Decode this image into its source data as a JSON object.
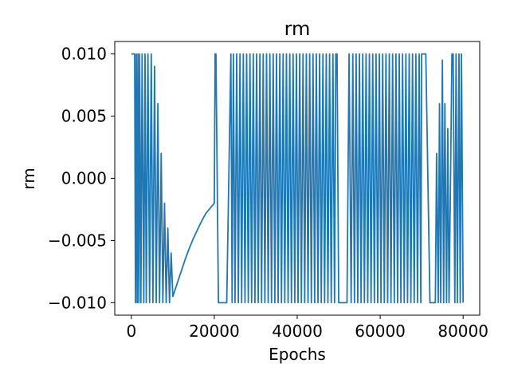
{
  "chart_data": {
    "type": "line",
    "title": "rm",
    "xlabel": "Epochs",
    "ylabel": "rm",
    "xlim": [
      -4000,
      84000
    ],
    "ylim": [
      -0.011,
      0.011
    ],
    "grid": false,
    "xticks": [
      {
        "value": 0,
        "label": "0"
      },
      {
        "value": 20000,
        "label": "20000"
      },
      {
        "value": 40000,
        "label": "40000"
      },
      {
        "value": 60000,
        "label": "60000"
      },
      {
        "value": 80000,
        "label": "80000"
      }
    ],
    "yticks": [
      {
        "value": 0.01,
        "label": "0.010"
      },
      {
        "value": 0.005,
        "label": "0.005"
      },
      {
        "value": 0.0,
        "label": "0.000"
      },
      {
        "value": -0.005,
        "label": "−0.005"
      },
      {
        "value": -0.01,
        "label": "−0.010"
      }
    ],
    "series": [
      {
        "color": "#1f77b4",
        "x": [
          0,
          800,
          1000,
          1200,
          1400,
          1600,
          1800,
          2000,
          2300,
          2600,
          3000,
          3300,
          3600,
          4000,
          4400,
          4800,
          5200,
          5600,
          6000,
          6400,
          6800,
          7200,
          7600,
          8000,
          8400,
          8800,
          9200,
          9600,
          10000,
          10500,
          11000,
          12000,
          13000,
          14000,
          15000,
          16000,
          17000,
          18000,
          19000,
          20000,
          20200,
          20400,
          21000,
          22000,
          23000,
          24000,
          24300,
          24600,
          25000,
          25400,
          25800,
          26200,
          26600,
          27000,
          27400,
          27800,
          28200,
          28600,
          29000,
          29400,
          29800,
          30200,
          30600,
          31000,
          31400,
          31800,
          32200,
          32600,
          33000,
          33400,
          33800,
          34200,
          34600,
          35000,
          35400,
          35800,
          36200,
          36600,
          37000,
          37400,
          37800,
          38200,
          38600,
          39000,
          39400,
          39800,
          40200,
          40600,
          41000,
          41400,
          41800,
          42200,
          42600,
          43000,
          43400,
          43800,
          44200,
          44600,
          45000,
          45400,
          45800,
          46200,
          46600,
          47000,
          47400,
          47800,
          48200,
          48600,
          49000,
          49300,
          49600,
          50000,
          51000,
          52000,
          52500,
          53000,
          53400,
          53800,
          54200,
          54600,
          55000,
          55400,
          55800,
          56200,
          56600,
          57000,
          57400,
          57800,
          58200,
          58600,
          59000,
          59400,
          59800,
          60200,
          60600,
          61000,
          61400,
          61800,
          62200,
          62600,
          63000,
          63400,
          63800,
          64200,
          64600,
          65000,
          65400,
          65800,
          66200,
          66600,
          67000,
          67400,
          67800,
          68200,
          68600,
          69000,
          69400,
          69800,
          70000,
          71000,
          72000,
          73000,
          73300,
          73600,
          74000,
          74300,
          74600,
          75000,
          75300,
          75600,
          76000,
          76300,
          76600,
          77000,
          77300,
          77600,
          78000,
          78300,
          78600,
          79000,
          79300,
          79600,
          80000
        ],
        "y": [
          0.01,
          0.01,
          -0.01,
          0.01,
          -0.01,
          0.01,
          -0.01,
          0.01,
          -0.01,
          0.01,
          -0.01,
          0.01,
          -0.01,
          0.01,
          -0.01,
          0.01,
          -0.01,
          0.009,
          -0.01,
          0.006,
          -0.01,
          0.002,
          -0.01,
          -0.002,
          -0.01,
          -0.004,
          -0.01,
          -0.006,
          -0.0095,
          -0.009,
          -0.0085,
          -0.0075,
          -0.0065,
          -0.0056,
          -0.0048,
          -0.0041,
          -0.0034,
          -0.0028,
          -0.0024,
          -0.002,
          0.01,
          0.01,
          -0.01,
          -0.01,
          -0.01,
          0.01,
          -0.01,
          0.01,
          -0.01,
          0.01,
          -0.01,
          0.01,
          -0.01,
          0.01,
          -0.01,
          0.01,
          -0.01,
          0.01,
          -0.01,
          0.01,
          -0.01,
          0.01,
          -0.01,
          0.01,
          -0.01,
          0.01,
          -0.01,
          0.01,
          -0.01,
          0.01,
          -0.01,
          0.01,
          -0.01,
          0.01,
          -0.01,
          0.01,
          -0.01,
          0.01,
          -0.01,
          0.01,
          -0.01,
          0.01,
          -0.01,
          0.01,
          -0.01,
          0.01,
          -0.01,
          0.01,
          -0.01,
          0.01,
          -0.01,
          0.01,
          -0.01,
          0.01,
          -0.01,
          0.01,
          -0.01,
          0.01,
          -0.01,
          0.01,
          -0.01,
          0.01,
          -0.01,
          0.01,
          -0.01,
          0.01,
          -0.01,
          0.01,
          -0.01,
          0.01,
          0.01,
          -0.01,
          -0.01,
          -0.01,
          0.01,
          -0.01,
          0.01,
          -0.01,
          0.01,
          -0.01,
          0.01,
          -0.01,
          0.01,
          -0.01,
          0.01,
          -0.01,
          0.01,
          -0.01,
          0.01,
          -0.01,
          0.01,
          -0.01,
          0.01,
          -0.01,
          0.01,
          -0.01,
          0.01,
          -0.01,
          0.01,
          -0.01,
          0.01,
          -0.01,
          0.01,
          -0.01,
          0.01,
          -0.01,
          0.01,
          -0.01,
          0.01,
          -0.01,
          0.01,
          -0.01,
          0.01,
          -0.01,
          0.01,
          -0.01,
          0.01,
          -0.01,
          0.01,
          0.01,
          -0.01,
          -0.01,
          -0.01,
          0.002,
          -0.01,
          0.006,
          -0.01,
          0.0095,
          -0.01,
          0.006,
          -0.01,
          0.004,
          -0.01,
          0.001,
          0.01,
          0.01,
          -0.01,
          0.01,
          -0.01,
          0.01,
          -0.01,
          0.01,
          -0.01
        ]
      }
    ]
  }
}
